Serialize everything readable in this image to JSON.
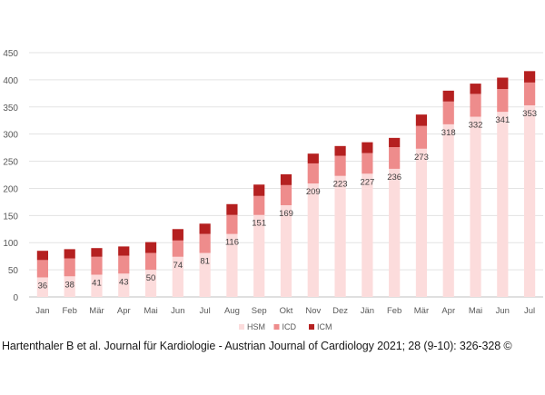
{
  "chart_data": {
    "type": "bar",
    "stacked": true,
    "categories": [
      "Jan",
      "Feb",
      "Mär",
      "Apr",
      "Mai",
      "Jun",
      "Jul",
      "Aug",
      "Sep",
      "Okt",
      "Nov",
      "Dez",
      "Jän",
      "Feb",
      "Mär",
      "Apr",
      "Mai",
      "Jun",
      "Jul"
    ],
    "series": [
      {
        "name": "HSM",
        "color": "#fcdcdc",
        "values": [
          36,
          38,
          41,
          43,
          50,
          74,
          81,
          116,
          151,
          169,
          209,
          223,
          227,
          236,
          273,
          318,
          332,
          341,
          353
        ]
      },
      {
        "name": "ICD",
        "color": "#ee8c8c",
        "values": [
          32,
          33,
          33,
          33,
          31,
          30,
          35,
          35,
          35,
          37,
          37,
          37,
          38,
          40,
          42,
          42,
          42,
          42,
          42
        ]
      },
      {
        "name": "ICM",
        "color": "#b52020",
        "values": [
          17,
          17,
          16,
          17,
          20,
          21,
          19,
          20,
          21,
          20,
          18,
          18,
          20,
          17,
          21,
          20,
          19,
          21,
          21
        ]
      }
    ],
    "data_labels_series": "HSM",
    "yticks": [
      0,
      50,
      100,
      150,
      200,
      250,
      300,
      350,
      400,
      450
    ],
    "ylim": [
      0,
      450
    ],
    "title": "",
    "xlabel": "",
    "ylabel": "",
    "grid": true,
    "legend_position": "bottom"
  },
  "citation": "Hartenthaler B et al. Journal für Kardiologie - Austrian Journal of Cardiology 2021; 28 (9-10): 326-328 ©"
}
